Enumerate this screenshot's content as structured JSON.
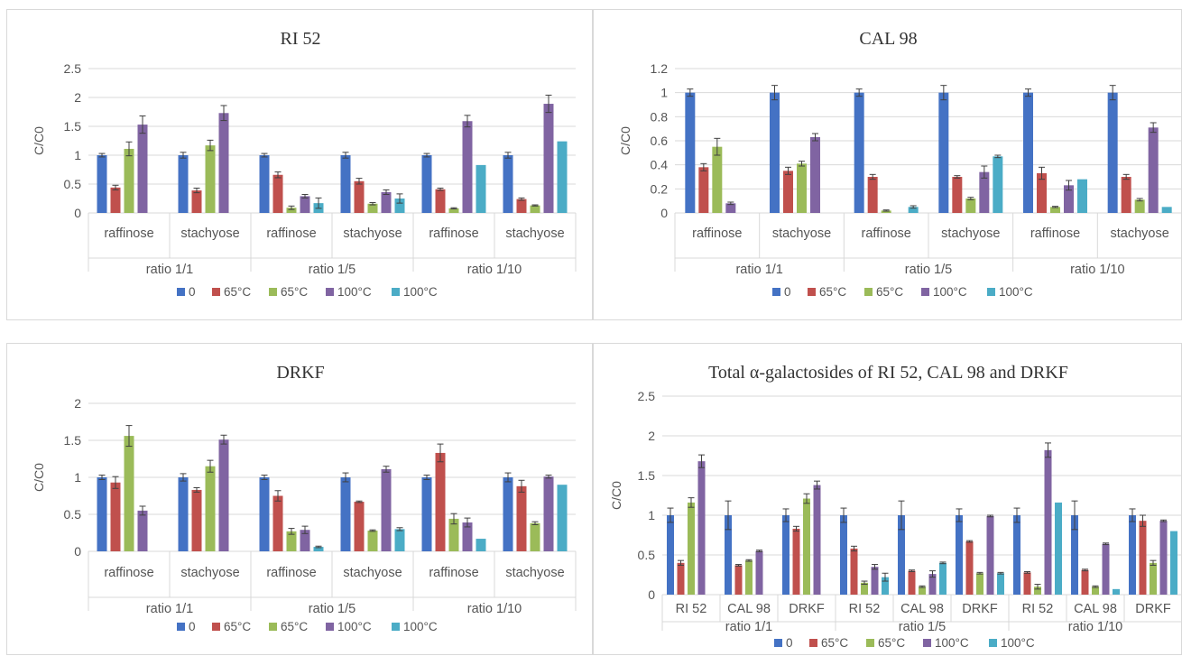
{
  "colors": {
    "0": "#4472c4",
    "65a": "#c0504d",
    "65b": "#9bbb59",
    "100a": "#8064a2",
    "100b": "#4bacc6"
  },
  "chart_data": [
    {
      "type": "bar",
      "title": "RI 52",
      "ylabel": "C/C0",
      "ylim": [
        0,
        2.5
      ],
      "yticks": [
        "0",
        "0.5",
        "1",
        "1.5",
        "2",
        "2.5"
      ],
      "categories": [
        "raffinose",
        "stachyose",
        "raffinose",
        "stachyose",
        "raffinose",
        "stachyose"
      ],
      "groups": [
        "ratio 1/1",
        "ratio 1/5",
        "ratio 1/10"
      ],
      "series": [
        {
          "name": "0",
          "values": [
            1.0,
            1.0,
            1.0,
            1.0,
            1.0,
            1.0
          ],
          "err": [
            0.03,
            0.05,
            0.03,
            0.05,
            0.03,
            0.05
          ]
        },
        {
          "name": "65°C",
          "values": [
            0.44,
            0.39,
            0.66,
            0.55,
            0.41,
            0.24
          ],
          "err": [
            0.04,
            0.04,
            0.05,
            0.05,
            0.02,
            0.02
          ]
        },
        {
          "name": "65°C",
          "values": [
            1.11,
            1.17,
            0.09,
            0.16,
            0.08,
            0.13
          ],
          "err": [
            0.12,
            0.09,
            0.03,
            0.02,
            0.01,
            0.01
          ]
        },
        {
          "name": "100°C",
          "values": [
            1.53,
            1.73,
            0.29,
            0.36,
            1.59,
            1.89
          ],
          "err": [
            0.15,
            0.13,
            0.03,
            0.04,
            0.1,
            0.15
          ]
        },
        {
          "name": "100°C",
          "values": [
            null,
            null,
            0.17,
            0.25,
            0.83,
            1.24
          ],
          "err": [
            0,
            0,
            0.09,
            0.08,
            0,
            0
          ]
        }
      ]
    },
    {
      "type": "bar",
      "title": "CAL 98",
      "ylabel": "C/C0",
      "ylim": [
        0,
        1.2
      ],
      "yticks": [
        "0",
        "0.2",
        "0.4",
        "0.6",
        "0.8",
        "1",
        "1.2"
      ],
      "categories": [
        "raffinose",
        "stachyose",
        "raffinose",
        "stachyose",
        "raffinose",
        "stachyose"
      ],
      "groups": [
        "ratio 1/1",
        "ratio 1/5",
        "ratio 1/10"
      ],
      "series": [
        {
          "name": "0",
          "values": [
            1.0,
            1.0,
            1.0,
            1.0,
            1.0,
            1.0
          ],
          "err": [
            0.03,
            0.06,
            0.03,
            0.06,
            0.03,
            0.06
          ]
        },
        {
          "name": "65°C",
          "values": [
            0.38,
            0.35,
            0.3,
            0.3,
            0.33,
            0.3
          ],
          "err": [
            0.03,
            0.03,
            0.02,
            0.01,
            0.05,
            0.02
          ]
        },
        {
          "name": "65°C",
          "values": [
            0.55,
            0.41,
            0.02,
            0.12,
            0.05,
            0.11
          ],
          "err": [
            0.07,
            0.02,
            0.005,
            0.01,
            0.005,
            0.01
          ]
        },
        {
          "name": "100°C",
          "values": [
            0.08,
            0.63,
            null,
            0.34,
            0.23,
            0.71
          ],
          "err": [
            0.01,
            0.03,
            0,
            0.05,
            0.04,
            0.04
          ]
        },
        {
          "name": "100°C",
          "values": [
            null,
            null,
            0.05,
            0.47,
            0.28,
            0.05
          ],
          "err": [
            0,
            0,
            0.01,
            0.01,
            0,
            0
          ]
        }
      ]
    },
    {
      "type": "bar",
      "title": "DRKF",
      "ylabel": "C/C0",
      "ylim": [
        0,
        2
      ],
      "yticks": [
        "0",
        "0.5",
        "1",
        "1.5",
        "2"
      ],
      "categories": [
        "raffinose",
        "stachyose",
        "raffinose",
        "stachyose",
        "raffinose",
        "stachyose"
      ],
      "groups": [
        "ratio 1/1",
        "ratio 1/5",
        "ratio 1/10"
      ],
      "series": [
        {
          "name": "0",
          "values": [
            1.0,
            1.0,
            1.0,
            1.0,
            1.0,
            1.0
          ],
          "err": [
            0.03,
            0.05,
            0.03,
            0.06,
            0.03,
            0.06
          ]
        },
        {
          "name": "65°C",
          "values": [
            0.93,
            0.83,
            0.75,
            0.67,
            1.33,
            0.88
          ],
          "err": [
            0.08,
            0.03,
            0.07,
            0.01,
            0.12,
            0.08
          ]
        },
        {
          "name": "65°C",
          "values": [
            1.56,
            1.15,
            0.27,
            0.28,
            0.44,
            0.38
          ],
          "err": [
            0.14,
            0.08,
            0.04,
            0.01,
            0.07,
            0.02
          ]
        },
        {
          "name": "100°C",
          "values": [
            0.55,
            1.51,
            0.29,
            1.11,
            0.39,
            1.01
          ],
          "err": [
            0.06,
            0.06,
            0.05,
            0.04,
            0.06,
            0.02
          ]
        },
        {
          "name": "100°C",
          "values": [
            null,
            null,
            0.06,
            0.3,
            0.17,
            0.9
          ],
          "err": [
            0,
            0,
            0.01,
            0.02,
            0,
            0
          ]
        }
      ]
    },
    {
      "type": "bar",
      "title": "Total α-galactosides of RI 52, CAL 98 and DRKF",
      "ylabel": "C/C0",
      "ylim": [
        0,
        2.5
      ],
      "yticks": [
        "0",
        "0.5",
        "1",
        "1.5",
        "2",
        "2.5"
      ],
      "categories": [
        "RI 52",
        "CAL 98",
        "DRKF",
        "RI 52",
        "CAL 98",
        "DRKF",
        "RI 52",
        "CAL 98",
        "DRKF"
      ],
      "groups": [
        "ratio 1/1",
        "ratio 1/5",
        "ratio 1/10"
      ],
      "series": [
        {
          "name": "0",
          "values": [
            1.0,
            1.0,
            1.0,
            1.0,
            1.0,
            1.0,
            1.0,
            1.0,
            1.0
          ],
          "err": [
            0.09,
            0.18,
            0.08,
            0.09,
            0.18,
            0.08,
            0.09,
            0.18,
            0.08
          ]
        },
        {
          "name": "65°C",
          "values": [
            0.4,
            0.37,
            0.83,
            0.58,
            0.3,
            0.67,
            0.28,
            0.31,
            0.93
          ],
          "err": [
            0.03,
            0.01,
            0.03,
            0.03,
            0.01,
            0.01,
            0.01,
            0.01,
            0.07
          ]
        },
        {
          "name": "65°C",
          "values": [
            1.16,
            0.43,
            1.21,
            0.15,
            0.1,
            0.27,
            0.1,
            0.1,
            0.4
          ],
          "err": [
            0.06,
            0.01,
            0.06,
            0.02,
            0.01,
            0.01,
            0.03,
            0.01,
            0.03
          ]
        },
        {
          "name": "100°C",
          "values": [
            1.68,
            0.55,
            1.38,
            0.35,
            0.26,
            0.99,
            1.82,
            0.64,
            0.93
          ],
          "err": [
            0.08,
            0.01,
            0.05,
            0.03,
            0.04,
            0.01,
            0.09,
            0.01,
            0.01
          ]
        },
        {
          "name": "100°C",
          "values": [
            null,
            null,
            null,
            0.22,
            0.4,
            0.27,
            1.16,
            0.07,
            0.8
          ],
          "err": [
            0,
            0,
            0,
            0.05,
            0.01,
            0.01,
            0,
            0,
            0
          ]
        }
      ]
    }
  ]
}
